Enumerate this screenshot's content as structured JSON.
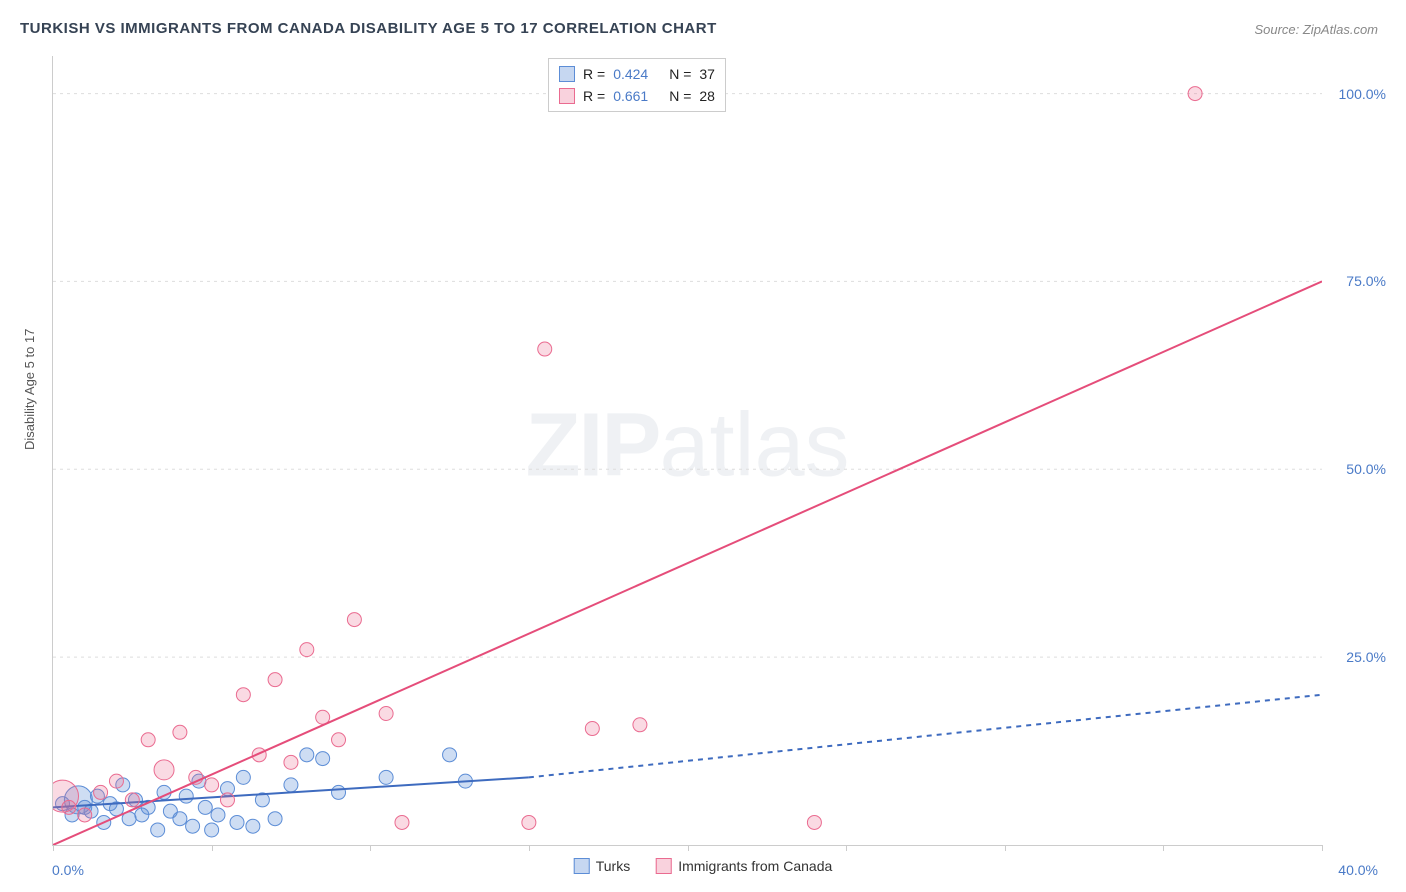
{
  "title": "TURKISH VS IMMIGRANTS FROM CANADA DISABILITY AGE 5 TO 17 CORRELATION CHART",
  "source": "Source: ZipAtlas.com",
  "watermark_zip": "ZIP",
  "watermark_atlas": "atlas",
  "y_axis_title": "Disability Age 5 to 17",
  "x_label_min": "0.0%",
  "x_label_max": "40.0%",
  "chart": {
    "type": "scatter",
    "xlim": [
      0,
      40
    ],
    "ylim": [
      0,
      105
    ],
    "x_ticks": [
      0,
      5,
      10,
      15,
      20,
      25,
      30,
      35,
      40
    ],
    "grid": [
      {
        "y": 25.0,
        "label": "25.0%"
      },
      {
        "y": 50.0,
        "label": "50.0%"
      },
      {
        "y": 75.0,
        "label": "75.0%"
      },
      {
        "y": 100.0,
        "label": "100.0%"
      }
    ],
    "grid_color": "#dddddd",
    "background_color": "#ffffff",
    "series": [
      {
        "name": "Turks",
        "color_fill": "rgba(92,141,214,0.30)",
        "color_stroke": "#5c8dd6",
        "marker_radius": 7,
        "trend": {
          "x1": 0,
          "y1": 5.0,
          "x2": 15,
          "y2": 9.0,
          "solid_until_x": 15,
          "extend_to": {
            "x": 40,
            "y": 20.0
          },
          "color": "#3e6bbf",
          "dash": "5,5",
          "width": 2
        },
        "points": [
          {
            "x": 0.3,
            "y": 5.5
          },
          {
            "x": 0.6,
            "y": 4.0
          },
          {
            "x": 0.8,
            "y": 6.0,
            "r": 14
          },
          {
            "x": 1.0,
            "y": 5.0
          },
          {
            "x": 1.2,
            "y": 4.5
          },
          {
            "x": 1.4,
            "y": 6.5
          },
          {
            "x": 1.6,
            "y": 3.0
          },
          {
            "x": 1.8,
            "y": 5.5
          },
          {
            "x": 2.0,
            "y": 4.8
          },
          {
            "x": 2.2,
            "y": 8.0
          },
          {
            "x": 2.4,
            "y": 3.5
          },
          {
            "x": 2.6,
            "y": 6.0
          },
          {
            "x": 2.8,
            "y": 4.0
          },
          {
            "x": 3.0,
            "y": 5.0
          },
          {
            "x": 3.3,
            "y": 2.0
          },
          {
            "x": 3.5,
            "y": 7.0
          },
          {
            "x": 3.7,
            "y": 4.5
          },
          {
            "x": 4.0,
            "y": 3.5
          },
          {
            "x": 4.2,
            "y": 6.5
          },
          {
            "x": 4.4,
            "y": 2.5
          },
          {
            "x": 4.6,
            "y": 8.5
          },
          {
            "x": 4.8,
            "y": 5.0
          },
          {
            "x": 5.0,
            "y": 2.0
          },
          {
            "x": 5.2,
            "y": 4.0
          },
          {
            "x": 5.5,
            "y": 7.5
          },
          {
            "x": 5.8,
            "y": 3.0
          },
          {
            "x": 6.0,
            "y": 9.0
          },
          {
            "x": 6.3,
            "y": 2.5
          },
          {
            "x": 6.6,
            "y": 6.0
          },
          {
            "x": 7.0,
            "y": 3.5
          },
          {
            "x": 7.5,
            "y": 8.0
          },
          {
            "x": 8.0,
            "y": 12.0
          },
          {
            "x": 8.5,
            "y": 11.5
          },
          {
            "x": 9.0,
            "y": 7.0
          },
          {
            "x": 10.5,
            "y": 9.0
          },
          {
            "x": 12.5,
            "y": 12.0
          },
          {
            "x": 13.0,
            "y": 8.5
          }
        ]
      },
      {
        "name": "Immigrants from Canada",
        "color_fill": "rgba(234,107,144,0.25)",
        "color_stroke": "#ea6b90",
        "marker_radius": 7,
        "trend": {
          "x1": 0,
          "y1": 0,
          "x2": 40,
          "y2": 75.0,
          "color": "#e54d7a",
          "width": 2
        },
        "points": [
          {
            "x": 0.3,
            "y": 6.5,
            "r": 16
          },
          {
            "x": 0.5,
            "y": 5.0
          },
          {
            "x": 1.0,
            "y": 4.0
          },
          {
            "x": 1.5,
            "y": 7.0
          },
          {
            "x": 2.0,
            "y": 8.5
          },
          {
            "x": 2.5,
            "y": 6.0
          },
          {
            "x": 3.0,
            "y": 14.0
          },
          {
            "x": 3.5,
            "y": 10.0,
            "r": 10
          },
          {
            "x": 4.0,
            "y": 15.0
          },
          {
            "x": 4.5,
            "y": 9.0
          },
          {
            "x": 5.0,
            "y": 8.0
          },
          {
            "x": 5.5,
            "y": 6.0
          },
          {
            "x": 6.0,
            "y": 20.0
          },
          {
            "x": 6.5,
            "y": 12.0
          },
          {
            "x": 7.0,
            "y": 22.0
          },
          {
            "x": 7.5,
            "y": 11.0
          },
          {
            "x": 8.0,
            "y": 26.0
          },
          {
            "x": 8.5,
            "y": 17.0
          },
          {
            "x": 9.0,
            "y": 14.0
          },
          {
            "x": 9.5,
            "y": 30.0
          },
          {
            "x": 10.5,
            "y": 17.5
          },
          {
            "x": 11.0,
            "y": 3.0
          },
          {
            "x": 15.0,
            "y": 3.0
          },
          {
            "x": 15.5,
            "y": 66.0
          },
          {
            "x": 17.0,
            "y": 15.5
          },
          {
            "x": 18.5,
            "y": 16.0
          },
          {
            "x": 24.0,
            "y": 3.0
          },
          {
            "x": 36.0,
            "y": 100.0
          }
        ]
      }
    ]
  },
  "stats": [
    {
      "swatch": "blue",
      "r_label": "R =",
      "r": "0.424",
      "n_label": "N =",
      "n": "37"
    },
    {
      "swatch": "pink",
      "r_label": "R =",
      "r": "0.661",
      "n_label": "N =",
      "n": "28"
    }
  ],
  "legend": [
    {
      "swatch": "blue",
      "label": "Turks"
    },
    {
      "swatch": "pink",
      "label": "Immigrants from Canada"
    }
  ]
}
